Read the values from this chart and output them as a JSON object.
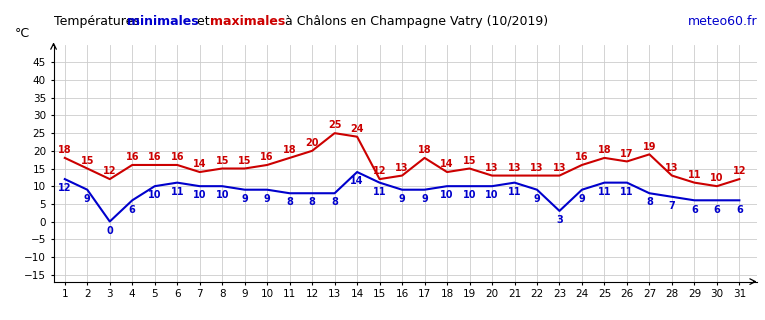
{
  "days": [
    1,
    2,
    3,
    4,
    5,
    6,
    7,
    8,
    9,
    10,
    11,
    12,
    13,
    14,
    15,
    16,
    17,
    18,
    19,
    20,
    21,
    22,
    23,
    24,
    25,
    26,
    27,
    28,
    29,
    30,
    31
  ],
  "min_temps": [
    12,
    9,
    0,
    6,
    10,
    11,
    10,
    10,
    9,
    9,
    8,
    8,
    8,
    14,
    11,
    9,
    9,
    10,
    10,
    10,
    11,
    9,
    3,
    9,
    11,
    11,
    8,
    7,
    6,
    6,
    6
  ],
  "max_temps": [
    18,
    15,
    12,
    16,
    16,
    16,
    14,
    15,
    15,
    16,
    18,
    20,
    25,
    24,
    12,
    13,
    18,
    14,
    15,
    13,
    13,
    13,
    13,
    16,
    18,
    17,
    19,
    13,
    11,
    10,
    12
  ],
  "title_parts": {
    "prefix": "Températures  ",
    "min_word": "minimales",
    "mid": " et ",
    "max_word": "maximales",
    "suffix": "  à Châlons en Champagne Vatry (10/2019)"
  },
  "watermark": "meteo60.fr",
  "ylabel": "°C",
  "min_color": "#0000cc",
  "max_color": "#cc0000",
  "watermark_color": "#0000cc",
  "ylim": [
    -17,
    50
  ],
  "xlim": [
    0.5,
    31.8
  ],
  "yticks": [
    -15,
    -10,
    -5,
    0,
    5,
    10,
    15,
    20,
    25,
    30,
    35,
    40,
    45
  ],
  "xticks": [
    1,
    2,
    3,
    4,
    5,
    6,
    7,
    8,
    9,
    10,
    11,
    12,
    13,
    14,
    15,
    16,
    17,
    18,
    19,
    20,
    21,
    22,
    23,
    24,
    25,
    26,
    27,
    28,
    29,
    30,
    31
  ],
  "bg_color": "#ffffff",
  "grid_color": "#cccccc",
  "line_width": 1.5,
  "label_fontsize": 7,
  "title_fontsize": 9,
  "watermark_fontsize": 9,
  "tick_fontsize": 7.5
}
